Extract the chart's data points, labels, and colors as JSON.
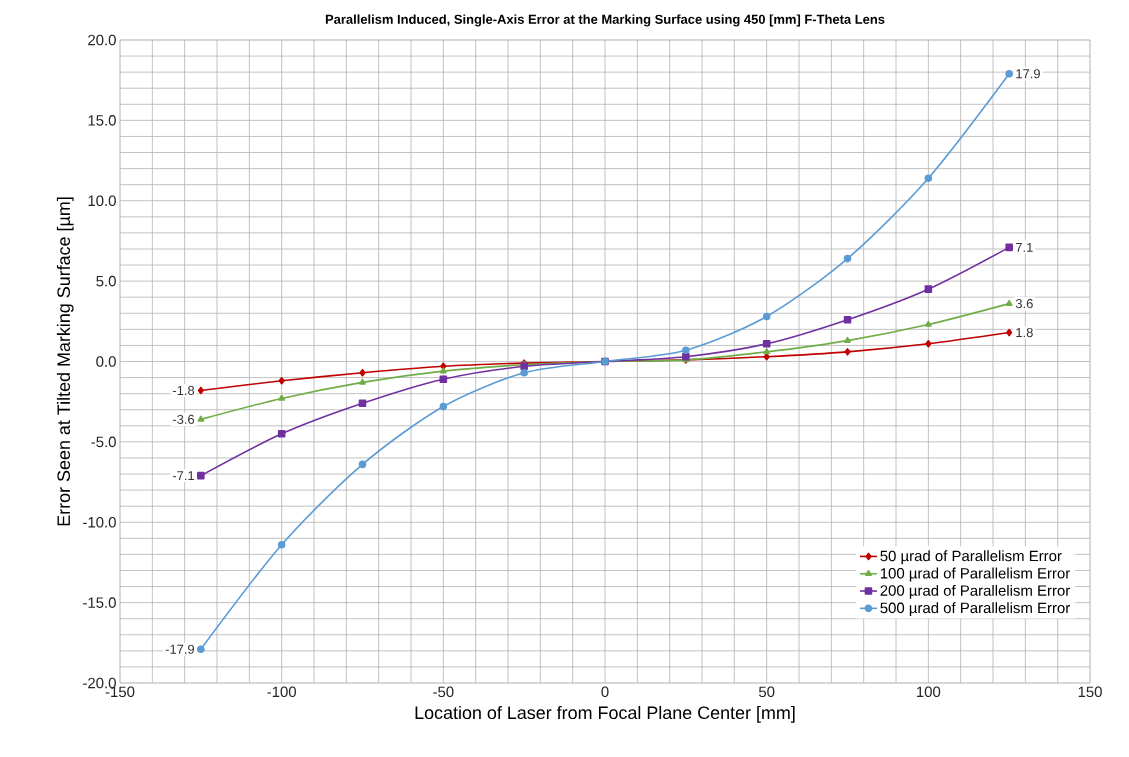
{
  "chart_data": {
    "type": "line",
    "title": "Parallelism Induced, Single-Axis Error at the Marking Surface using 450 [mm] F-Theta Lens",
    "xlabel": "Location of Laser from Focal Plane Center [mm]",
    "ylabel": "Error Seen at Tilted Marking Surface [µm]",
    "x": [
      -125,
      -100,
      -75,
      -50,
      -25,
      0,
      25,
      50,
      75,
      100,
      125
    ],
    "series": [
      {
        "name": "50 µrad of Parallelism Error",
        "color": "#c00000",
        "marker": "diamond",
        "values": [
          -1.8,
          -1.2,
          -0.7,
          -0.3,
          -0.1,
          0,
          0.1,
          0.3,
          0.6,
          1.1,
          1.8
        ],
        "value_labels": [
          "-1.8",
          null,
          null,
          null,
          null,
          null,
          null,
          null,
          null,
          null,
          "1.8"
        ]
      },
      {
        "name": "100 µrad of Parallelism Error",
        "color": "#70ad47",
        "marker": "triangle",
        "values": [
          -3.6,
          -2.3,
          -1.3,
          -0.6,
          -0.2,
          0,
          0.1,
          0.6,
          1.3,
          2.3,
          3.6
        ],
        "value_labels": [
          "-3.6",
          null,
          null,
          null,
          null,
          null,
          null,
          null,
          null,
          null,
          "3.6"
        ]
      },
      {
        "name": "200 µrad of Parallelism Error",
        "color": "#7030a0",
        "marker": "square",
        "values": [
          -7.1,
          -4.5,
          -2.6,
          -1.1,
          -0.3,
          0,
          0.3,
          1.1,
          2.6,
          4.5,
          7.1
        ],
        "value_labels": [
          "-7.1",
          null,
          null,
          null,
          null,
          null,
          null,
          null,
          null,
          null,
          "7.1"
        ]
      },
      {
        "name": "500 µrad of Parallelism Error",
        "color": "#5b9bd5",
        "marker": "circle",
        "values": [
          -17.9,
          -11.4,
          -6.4,
          -2.8,
          -0.7,
          0,
          0.7,
          2.8,
          6.4,
          11.4,
          17.9
        ],
        "value_labels": [
          "-17.9",
          null,
          null,
          null,
          null,
          null,
          null,
          null,
          null,
          null,
          "17.9"
        ]
      }
    ],
    "xlim": [
      -150,
      150
    ],
    "xticks": [
      -150,
      -100,
      -50,
      0,
      50,
      100,
      150
    ],
    "ylim": [
      -20,
      20
    ],
    "yticks": [
      {
        "value": -20,
        "label": "-20.0"
      },
      {
        "value": -15,
        "label": "-15.0"
      },
      {
        "value": -10,
        "label": "-10.0"
      },
      {
        "value": -5,
        "label": "-5.0"
      },
      {
        "value": 0,
        "label": "0.0"
      },
      {
        "value": 5,
        "label": "5.0"
      },
      {
        "value": 10,
        "label": "10.0"
      },
      {
        "value": 15,
        "label": "15.0"
      },
      {
        "value": 20,
        "label": "20.0"
      }
    ],
    "grid": true,
    "legend": "bottom right",
    "line_style": "solid"
  }
}
